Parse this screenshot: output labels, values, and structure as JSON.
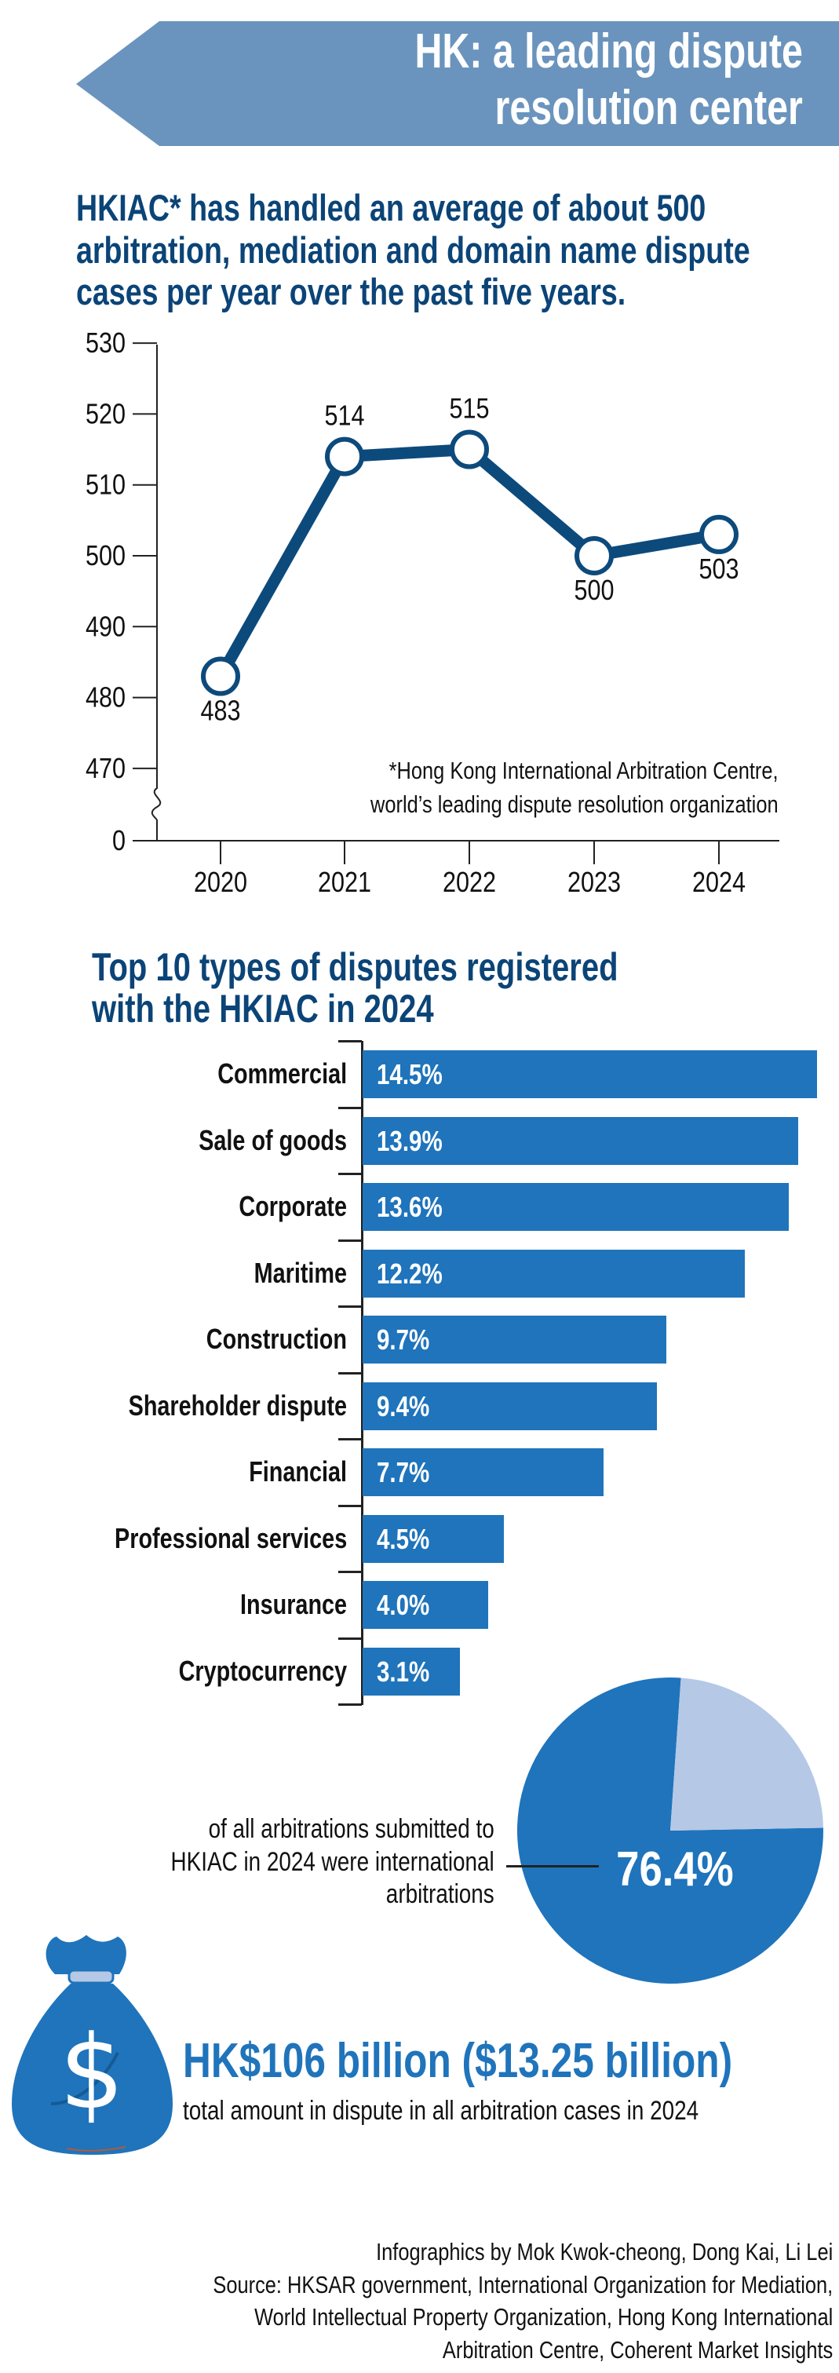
{
  "header": {
    "title_lines": [
      "HK: a leading dispute",
      "resolution center"
    ],
    "color": "#6a94bd"
  },
  "line_section": {
    "subtitle_lines": [
      "HKIAC* has handled an average of about 500",
      "arbitration, mediation and domain name dispute",
      "cases per year over the past five years."
    ],
    "footnote_lines": [
      "*Hong Kong International Arbitration Centre,",
      "world’s leading dispute resolution organization"
    ]
  },
  "bar_section": {
    "title_lines": [
      "Top 10 types of disputes registered",
      "with the HKIAC in 2024"
    ]
  },
  "pie_section": {
    "note_lines": [
      "of all arbitrations submitted to",
      "HKIAC in 2024 were international",
      "arbitrations"
    ],
    "value_label": "76.4%"
  },
  "amount_section": {
    "amount": "HK$106 billion ($13.25 billion)",
    "description": "total amount in dispute in all arbitration cases in 2024",
    "icon": "money-bag-icon",
    "icon_symbol": "$"
  },
  "credits": {
    "lines": [
      "Infographics by Mok Kwok-cheong, Dong Kai, Li Lei",
      "Source: HKSAR government, International Organization for Mediation,",
      "World Intellectual Property Organization, Hong Kong International",
      "Arbitration Centre, Coherent Market Insights"
    ]
  },
  "chart_data": [
    {
      "type": "line",
      "title": "HKIAC* has handled an average of about 500 arbitration, mediation and domain name dispute cases per year over the past five years.",
      "x": [
        "2020",
        "2021",
        "2022",
        "2023",
        "2024"
      ],
      "values": [
        483,
        514,
        515,
        500,
        503
      ],
      "value_labels": [
        "483",
        "514",
        "515",
        "500",
        "503"
      ],
      "y_ticks": [
        "530",
        "520",
        "510",
        "500",
        "490",
        "480",
        "470",
        "0"
      ],
      "ylim": [
        470,
        530
      ],
      "axis_break": true,
      "color": "#0d4a7c"
    },
    {
      "type": "bar",
      "orientation": "horizontal",
      "title": "Top 10 types of disputes registered with the HKIAC in 2024",
      "categories": [
        "Commercial",
        "Sale of goods",
        "Corporate",
        "Maritime",
        "Construction",
        "Shareholder dispute",
        "Financial",
        "Professional services",
        "Insurance",
        "Cryptocurrency"
      ],
      "values": [
        14.5,
        13.9,
        13.6,
        12.2,
        9.7,
        9.4,
        7.7,
        4.5,
        4.0,
        3.1
      ],
      "value_labels": [
        "14.5%",
        "13.9%",
        "13.6%",
        "12.2%",
        "9.7%",
        "9.4%",
        "7.7%",
        "4.5%",
        "4.0%",
        "3.1%"
      ],
      "unit": "%",
      "color": "#1f74bb"
    },
    {
      "type": "pie",
      "slices": [
        {
          "name": "International",
          "value": 76.4,
          "color": "#1f74bb"
        },
        {
          "name": "Other",
          "value": 23.6,
          "color": "#b5c8e6"
        }
      ]
    }
  ]
}
